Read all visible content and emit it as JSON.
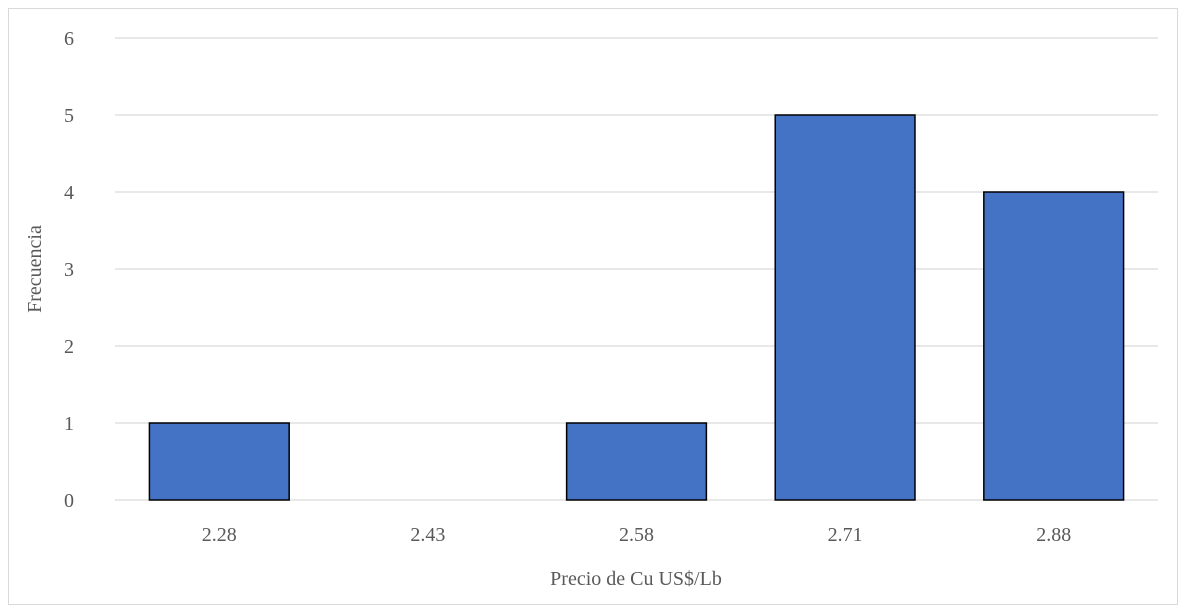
{
  "chart_data": {
    "type": "bar",
    "title": "",
    "xlabel": "Precio de Cu US$/Lb",
    "ylabel": "Frecuencia",
    "categories": [
      "2.28",
      "2.43",
      "2.58",
      "2.71",
      "2.88"
    ],
    "values": [
      1,
      0,
      1,
      5,
      4
    ],
    "ylim": [
      0,
      6
    ],
    "yticks": [
      "0",
      "1",
      "2",
      "3",
      "4",
      "5",
      "6"
    ],
    "grid": true,
    "legend": "none",
    "bar_color": "#4472c4",
    "bar_edge_color": "#000000",
    "grid_color": "#d9d9d9"
  }
}
